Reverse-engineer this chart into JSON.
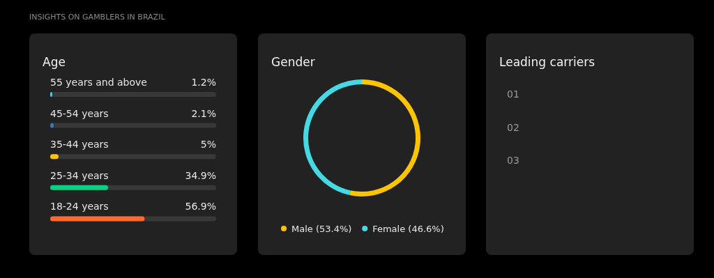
{
  "chart_data": [
    {
      "type": "bar",
      "orientation": "horizontal",
      "title": "Age",
      "annotations": [
        "INSIGHTS ON GAMBLERS IN BRAZIL"
      ],
      "categories": [
        "55 years and above",
        "45-54 years",
        "35-44 years",
        "25-34 years",
        "18-24 years"
      ],
      "values": [
        1.2,
        2.1,
        5,
        34.9,
        56.9
      ],
      "colors": [
        "#45d9e3",
        "#3a79b8",
        "#ffc400",
        "#10d07f",
        "#ff6b2c"
      ],
      "value_labels": [
        "1.2%",
        "2.1%",
        "5%",
        "34.9%",
        "56.9%"
      ],
      "xlim": [
        0,
        100
      ],
      "grid": false
    },
    {
      "type": "donut",
      "title": "Gender",
      "categories": [
        "Male (53.4%)",
        "Female (46.6%)"
      ],
      "values": [
        53.4,
        46.6
      ],
      "colors": [
        "#ffc400",
        "#45d9e3"
      ],
      "legend": "bottom"
    },
    {
      "type": "other",
      "title": "Leading carriers",
      "annotations": [
        "01",
        "02",
        "03"
      ]
    }
  ]
}
